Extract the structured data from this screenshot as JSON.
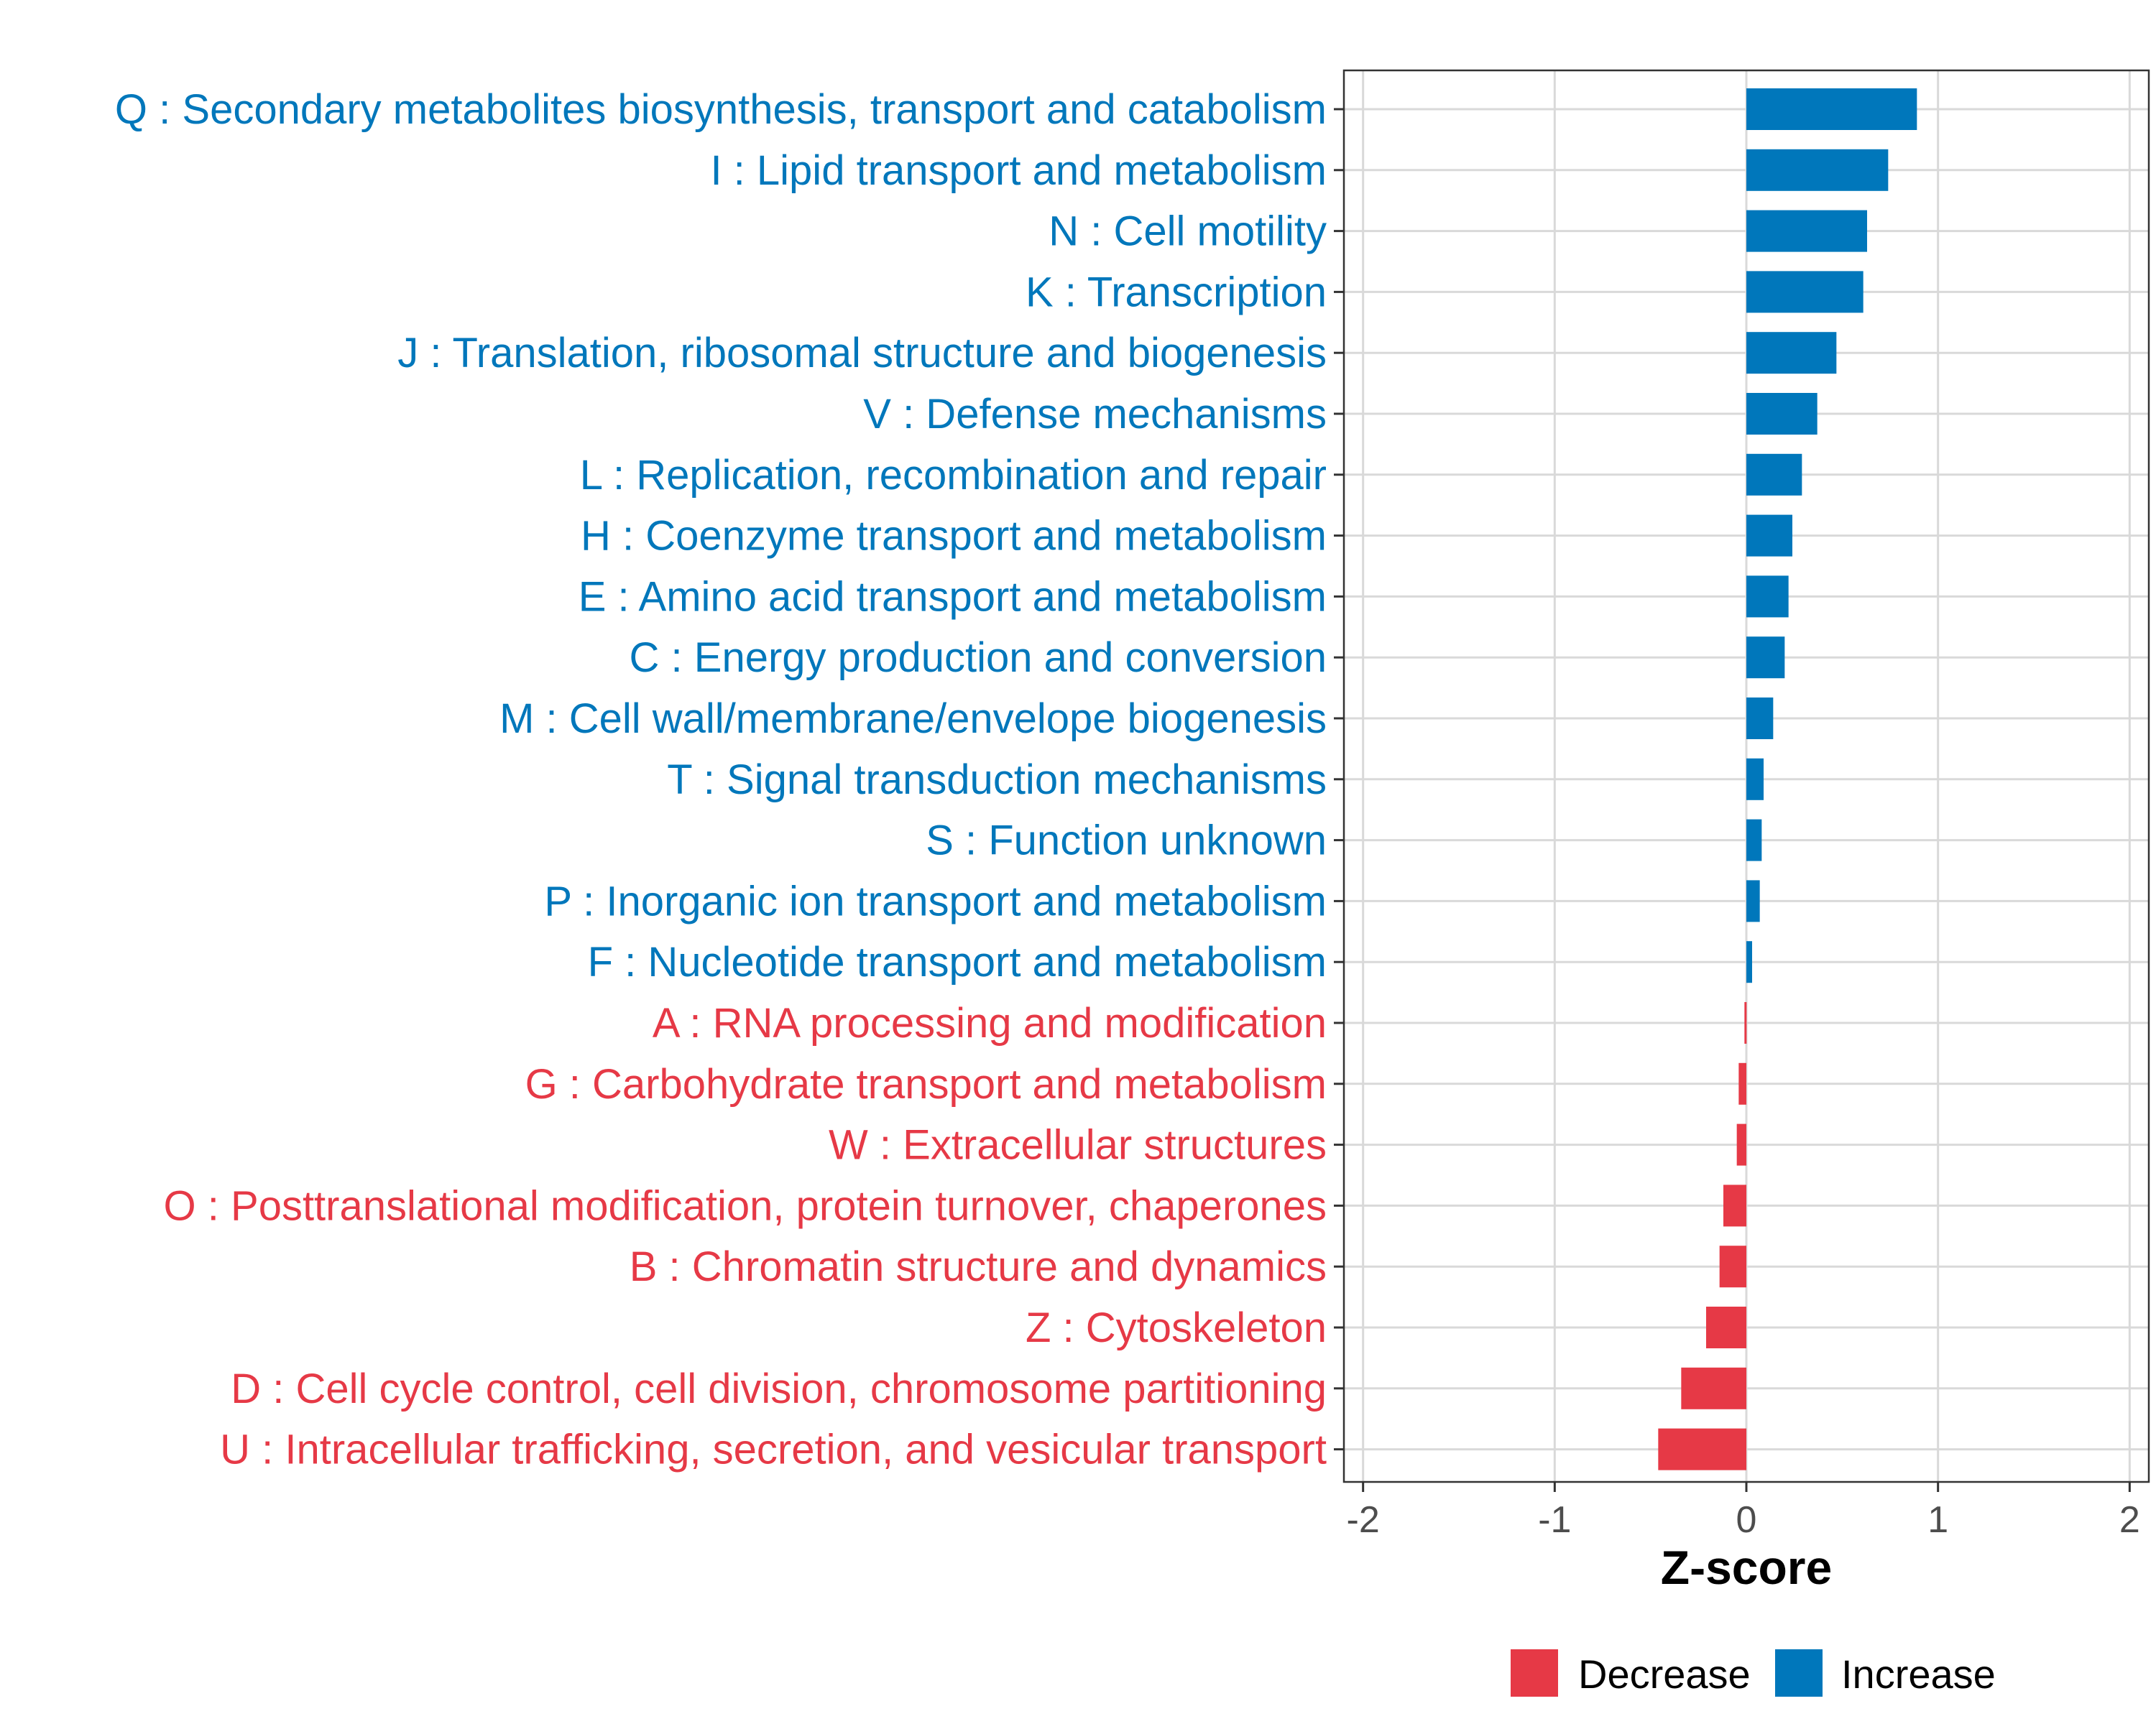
{
  "chart_data": {
    "type": "bar",
    "orientation": "horizontal",
    "title": "",
    "xlabel": "Z-score",
    "ylabel": "",
    "xlim": [
      -2.1,
      2.1
    ],
    "xticks": [
      "-2",
      "-1",
      "0",
      "1",
      "2"
    ],
    "grid": true,
    "legend_position": "bottom",
    "categories": [
      "Q : Secondary metabolites biosynthesis, transport and catabolism",
      "I : Lipid transport and metabolism",
      "N : Cell motility",
      "K : Transcription",
      "J : Translation, ribosomal structure and biogenesis",
      "V : Defense mechanisms",
      "L : Replication, recombination and repair",
      "H : Coenzyme transport and metabolism",
      "E : Amino acid transport and metabolism",
      "C : Energy production and conversion",
      "M : Cell wall/membrane/envelope biogenesis",
      "T : Signal transduction mechanisms",
      "S : Function unknown",
      "P : Inorganic ion transport and metabolism",
      "F : Nucleotide transport and metabolism",
      "A : RNA processing and modification",
      "G : Carbohydrate transport and metabolism",
      "W : Extracellular structures",
      "O : Posttranslational modification, protein turnover, chaperones",
      "B : Chromatin structure and dynamics",
      "Z : Cytoskeleton",
      "D : Cell cycle control, cell division, chromosome partitioning",
      "U : Intracellular trafficking, secretion, and vesicular transport"
    ],
    "values": [
      0.89,
      0.74,
      0.63,
      0.61,
      0.47,
      0.37,
      0.29,
      0.24,
      0.22,
      0.2,
      0.14,
      0.09,
      0.08,
      0.07,
      0.03,
      -0.01,
      -0.04,
      -0.05,
      -0.12,
      -0.14,
      -0.21,
      -0.34,
      -0.46
    ],
    "series": [
      {
        "name": "Decrease",
        "color": "#e63946"
      },
      {
        "name": "Increase",
        "color": "#0077bb"
      }
    ]
  },
  "legend": {
    "decrease_label": "Decrease",
    "increase_label": "Increase"
  }
}
